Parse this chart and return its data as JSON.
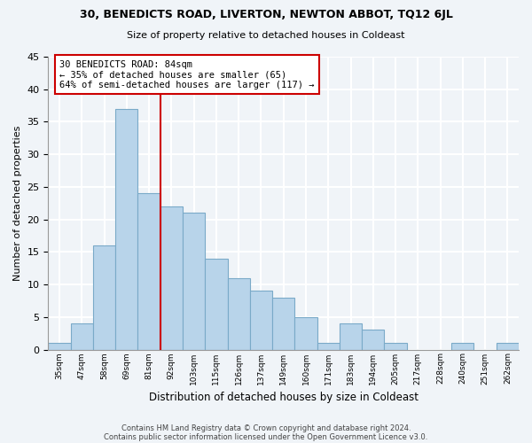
{
  "title1": "30, BENEDICTS ROAD, LIVERTON, NEWTON ABBOT, TQ12 6JL",
  "title2": "Size of property relative to detached houses in Coldeast",
  "xlabel": "Distribution of detached houses by size in Coldeast",
  "ylabel": "Number of detached properties",
  "footnote1": "Contains HM Land Registry data © Crown copyright and database right 2024.",
  "footnote2": "Contains public sector information licensed under the Open Government Licence v3.0.",
  "bin_labels": [
    "35sqm",
    "47sqm",
    "58sqm",
    "69sqm",
    "81sqm",
    "92sqm",
    "103sqm",
    "115sqm",
    "126sqm",
    "137sqm",
    "149sqm",
    "160sqm",
    "171sqm",
    "183sqm",
    "194sqm",
    "205sqm",
    "217sqm",
    "228sqm",
    "240sqm",
    "251sqm",
    "262sqm"
  ],
  "bin_values": [
    1,
    4,
    16,
    37,
    24,
    22,
    21,
    14,
    11,
    9,
    8,
    5,
    1,
    4,
    3,
    1,
    0,
    0,
    1,
    0,
    1
  ],
  "bar_color": "#b8d4ea",
  "bar_edge_color": "#7aaac8",
  "vline_color": "#cc0000",
  "annotation_title": "30 BENEDICTS ROAD: 84sqm",
  "annotation_line1": "← 35% of detached houses are smaller (65)",
  "annotation_line2": "64% of semi-detached houses are larger (117) →",
  "annotation_box_color": "white",
  "annotation_box_edge": "#cc0000",
  "ylim": [
    0,
    45
  ],
  "yticks": [
    0,
    5,
    10,
    15,
    20,
    25,
    30,
    35,
    40,
    45
  ],
  "bg_color": "#f0f4f8",
  "grid_color": "white"
}
